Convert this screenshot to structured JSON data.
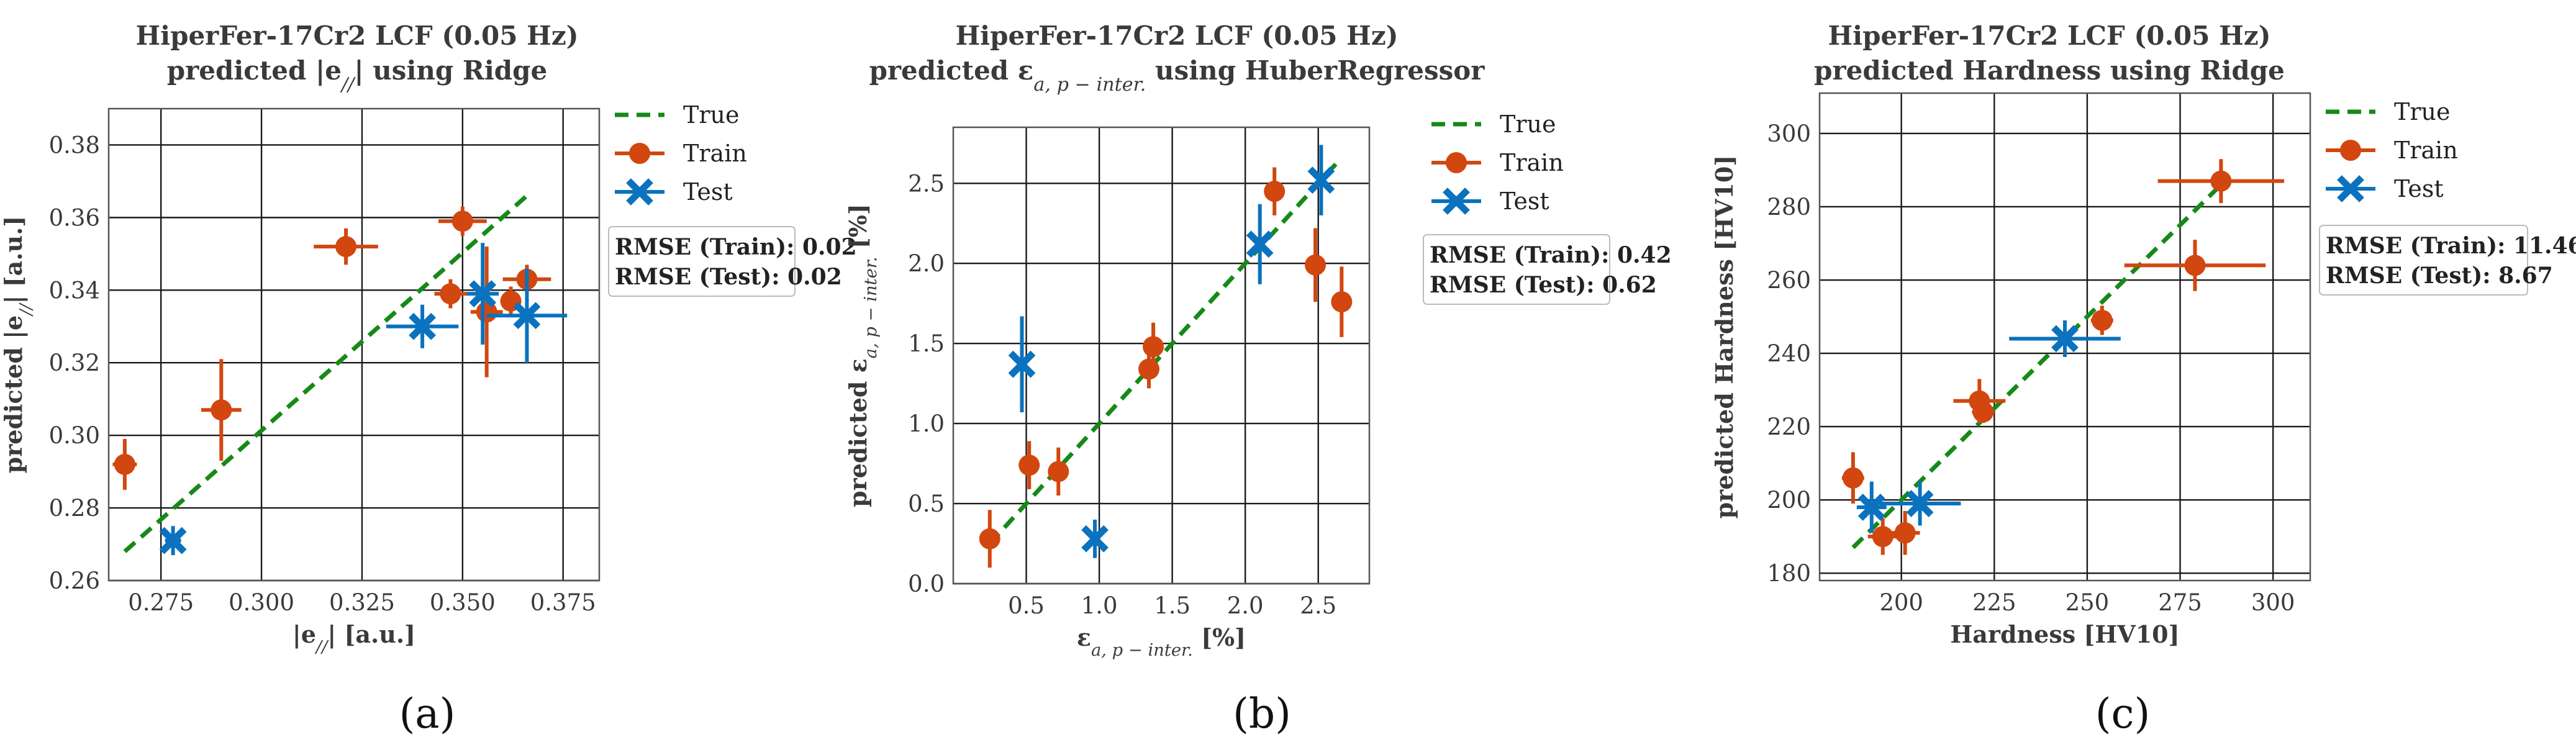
{
  "colors": {
    "true": "#168a16",
    "train": "#d1470f",
    "test": "#0a72be",
    "grid": "#1a1a1a",
    "frame": "#555555"
  },
  "chart_data": [
    {
      "type": "scatter",
      "panel_label": "(a)",
      "title": "HiperFer-17Cr2 LCF (0.05 Hz)",
      "subtitle_prefix": "predicted |e",
      "subtitle_sub": "//",
      "subtitle_suffix": "| using Ridge",
      "xlabel_prefix": "|e",
      "xlabel_sub": "//",
      "xlabel_suffix": "|  [a.u.]",
      "ylabel_prefix": "predicted |e",
      "ylabel_sub": "//",
      "ylabel_suffix": "|  [a.u.]",
      "xlim": [
        0.262,
        0.384
      ],
      "ylim": [
        0.26,
        0.39
      ],
      "xticks": [
        0.275,
        0.3,
        0.325,
        0.35,
        0.375
      ],
      "xtick_labels": [
        "0.275",
        "0.300",
        "0.325",
        "0.350",
        "0.375"
      ],
      "yticks": [
        0.26,
        0.28,
        0.3,
        0.32,
        0.34,
        0.36,
        0.38
      ],
      "ytick_labels": [
        "0.26",
        "0.28",
        "0.30",
        "0.32",
        "0.34",
        "0.36",
        "0.38"
      ],
      "true_line": {
        "x": [
          0.266,
          0.367
        ],
        "y": [
          0.268,
          0.367
        ]
      },
      "series": [
        {
          "name": "Train",
          "points": [
            {
              "x": 0.266,
              "y": 0.292,
              "xerr": 0.003,
              "yerr": 0.007
            },
            {
              "x": 0.29,
              "y": 0.307,
              "xerr": 0.005,
              "yerr": 0.014
            },
            {
              "x": 0.321,
              "y": 0.352,
              "xerr": 0.008,
              "yerr": 0.005
            },
            {
              "x": 0.35,
              "y": 0.359,
              "xerr": 0.006,
              "yerr": 0.004
            },
            {
              "x": 0.347,
              "y": 0.339,
              "xerr": 0.004,
              "yerr": 0.004
            },
            {
              "x": 0.356,
              "y": 0.334,
              "xerr": 0.004,
              "yerr": 0.018
            },
            {
              "x": 0.362,
              "y": 0.337,
              "xerr": 0.002,
              "yerr": 0.004
            },
            {
              "x": 0.366,
              "y": 0.343,
              "xerr": 0.006,
              "yerr": 0.004
            }
          ]
        },
        {
          "name": "Test",
          "points": [
            {
              "x": 0.278,
              "y": 0.271,
              "xerr": 0.002,
              "yerr": 0.004
            },
            {
              "x": 0.34,
              "y": 0.33,
              "xerr": 0.009,
              "yerr": 0.006
            },
            {
              "x": 0.355,
              "y": 0.339,
              "xerr": 0.004,
              "yerr": 0.014
            },
            {
              "x": 0.366,
              "y": 0.333,
              "xerr": 0.01,
              "yerr": 0.013
            }
          ]
        }
      ],
      "legend": [
        "True",
        "Train",
        "Test"
      ],
      "rmse_train": "RMSE (Train): 0.02",
      "rmse_test": "RMSE (Test): 0.02"
    },
    {
      "type": "scatter",
      "panel_label": "(b)",
      "title": "HiperFer-17Cr2 LCF (0.05 Hz)",
      "subtitle_prefix": "predicted ε",
      "subtitle_sub": "a, p − inter.",
      "subtitle_suffix": " using HuberRegressor",
      "xlabel_prefix": "ε",
      "xlabel_sub": "a, p − inter.",
      "xlabel_suffix": "  [%]",
      "ylabel_prefix": "predicted ε",
      "ylabel_sub": "a, p − inter.",
      "ylabel_suffix": "  [%]",
      "xlim": [
        0.0,
        2.85
      ],
      "ylim": [
        0.0,
        2.85
      ],
      "xticks": [
        0.5,
        1.0,
        1.5,
        2.0,
        2.5
      ],
      "xtick_labels": [
        "0.5",
        "1.0",
        "1.5",
        "2.0",
        "2.5"
      ],
      "yticks": [
        0.0,
        0.5,
        1.0,
        1.5,
        2.0,
        2.5
      ],
      "ytick_labels": [
        "0.0",
        "0.5",
        "1.0",
        "1.5",
        "2.0",
        "2.5"
      ],
      "true_line": {
        "x": [
          0.25,
          2.65
        ],
        "y": [
          0.25,
          2.65
        ]
      },
      "series": [
        {
          "name": "Train",
          "points": [
            {
              "x": 0.25,
              "y": 0.28,
              "xerr": 0.0,
              "yerr": 0.18
            },
            {
              "x": 0.52,
              "y": 0.74,
              "xerr": 0.0,
              "yerr": 0.15
            },
            {
              "x": 0.72,
              "y": 0.7,
              "xerr": 0.0,
              "yerr": 0.15
            },
            {
              "x": 1.34,
              "y": 1.34,
              "xerr": 0.0,
              "yerr": 0.12
            },
            {
              "x": 1.37,
              "y": 1.48,
              "xerr": 0.0,
              "yerr": 0.15
            },
            {
              "x": 2.2,
              "y": 2.45,
              "xerr": 0.0,
              "yerr": 0.15
            },
            {
              "x": 2.48,
              "y": 1.99,
              "xerr": 0.0,
              "yerr": 0.23
            },
            {
              "x": 2.66,
              "y": 1.76,
              "xerr": 0.0,
              "yerr": 0.22
            }
          ]
        },
        {
          "name": "Test",
          "points": [
            {
              "x": 0.47,
              "y": 1.37,
              "xerr": 0.0,
              "yerr": 0.3
            },
            {
              "x": 0.97,
              "y": 0.28,
              "xerr": 0.0,
              "yerr": 0.12
            },
            {
              "x": 2.1,
              "y": 2.12,
              "xerr": 0.0,
              "yerr": 0.25
            },
            {
              "x": 2.52,
              "y": 2.52,
              "xerr": 0.0,
              "yerr": 0.22
            }
          ]
        }
      ],
      "legend": [
        "True",
        "Train",
        "Test"
      ],
      "rmse_train": "RMSE (Train): 0.42",
      "rmse_test": "RMSE (Test): 0.62"
    },
    {
      "type": "scatter",
      "panel_label": "(c)",
      "title": "HiperFer-17Cr2 LCF (0.05 Hz)",
      "subtitle_prefix": "predicted Hardness using Ridge",
      "subtitle_sub": "",
      "subtitle_suffix": "",
      "xlabel_prefix": "Hardness  [HV10]",
      "xlabel_sub": "",
      "xlabel_suffix": "",
      "ylabel_prefix": "predicted Hardness  [HV10]",
      "ylabel_sub": "",
      "ylabel_suffix": "",
      "xlim": [
        178,
        310
      ],
      "ylim": [
        178,
        311
      ],
      "xticks": [
        200,
        225,
        250,
        275,
        300
      ],
      "xtick_labels": [
        "200",
        "225",
        "250",
        "275",
        "300"
      ],
      "yticks": [
        180,
        200,
        220,
        240,
        260,
        280,
        300
      ],
      "ytick_labels": [
        "180",
        "200",
        "220",
        "240",
        "260",
        "280",
        "300"
      ],
      "true_line": {
        "x": [
          187,
          287
        ],
        "y": [
          187,
          287
        ]
      },
      "series": [
        {
          "name": "Train",
          "points": [
            {
              "x": 187,
              "y": 206,
              "xerr": 3,
              "yerr": 7
            },
            {
              "x": 195,
              "y": 190,
              "xerr": 4,
              "yerr": 5
            },
            {
              "x": 201,
              "y": 191,
              "xerr": 4,
              "yerr": 6
            },
            {
              "x": 221,
              "y": 227,
              "xerr": 7,
              "yerr": 6
            },
            {
              "x": 222,
              "y": 224,
              "xerr": 3,
              "yerr": 3
            },
            {
              "x": 254,
              "y": 249,
              "xerr": 3,
              "yerr": 4
            },
            {
              "x": 279,
              "y": 264,
              "xerr": 19,
              "yerr": 7
            },
            {
              "x": 286,
              "y": 287,
              "xerr": 17,
              "yerr": 6
            }
          ]
        },
        {
          "name": "Test",
          "points": [
            {
              "x": 192,
              "y": 198,
              "xerr": 4,
              "yerr": 7
            },
            {
              "x": 205,
              "y": 199,
              "xerr": 11,
              "yerr": 6
            },
            {
              "x": 244,
              "y": 244,
              "xerr": 15,
              "yerr": 5
            }
          ]
        }
      ],
      "legend": [
        "True",
        "Train",
        "Test"
      ],
      "rmse_train": "RMSE (Train): 11.46",
      "rmse_test": "RMSE (Test): 8.67"
    }
  ]
}
